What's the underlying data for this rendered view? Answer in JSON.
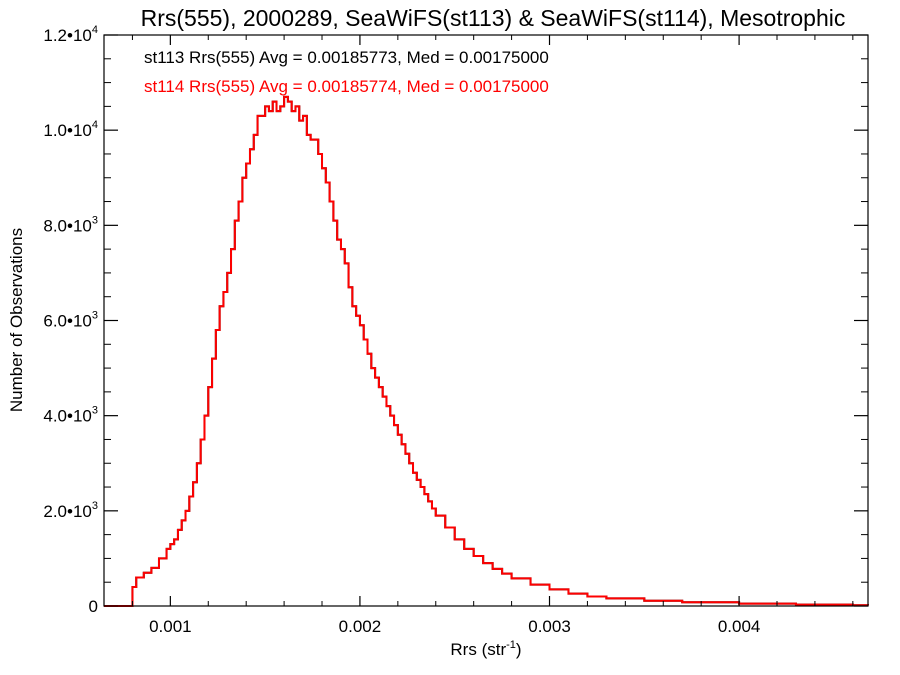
{
  "chart_data": {
    "type": "histogram",
    "title": "Rrs(555), 2000289, SeaWiFS(st113) & SeaWiFS(st114), Mesotrophic",
    "xlabel": "Rrs (str",
    "xlabel_sup": "-1",
    "xlabel_close": ")",
    "ylabel": "Number of Observations",
    "xlim": [
      0.00065,
      0.00468
    ],
    "ylim": [
      0,
      12000
    ],
    "grid": false,
    "x_ticks": [
      {
        "value": 0.001,
        "label": "0.001"
      },
      {
        "value": 0.002,
        "label": "0.002"
      },
      {
        "value": 0.003,
        "label": "0.003"
      },
      {
        "value": 0.004,
        "label": "0.004"
      }
    ],
    "y_ticks": [
      {
        "value": 0,
        "label": "0",
        "sup": ""
      },
      {
        "value": 2000,
        "label": "2.0•10",
        "sup": "3"
      },
      {
        "value": 4000,
        "label": "4.0•10",
        "sup": "3"
      },
      {
        "value": 6000,
        "label": "6.0•10",
        "sup": "3"
      },
      {
        "value": 8000,
        "label": "8.0•10",
        "sup": "3"
      },
      {
        "value": 10000,
        "label": "1.0•10",
        "sup": "4"
      },
      {
        "value": 12000,
        "label": "1.2•10",
        "sup": "4"
      }
    ],
    "annotations": [
      {
        "text": "st113 Rrs(555) Avg = 0.00185773, Med = 0.00175000",
        "color": "#000000"
      },
      {
        "text": "st114 Rrs(555) Avg = 0.00185774, Med = 0.00175000",
        "color": "#ff0000"
      }
    ],
    "series": [
      {
        "color": "#000000",
        "points": [
          [
            0.00065,
            0
          ],
          [
            0.0008,
            0
          ],
          [
            0.0008,
            400
          ],
          [
            0.00082,
            600
          ],
          [
            0.00086,
            700
          ],
          [
            0.0009,
            800
          ],
          [
            0.00094,
            1000
          ],
          [
            0.00098,
            1200
          ],
          [
            0.001,
            1300
          ],
          [
            0.00102,
            1400
          ],
          [
            0.00104,
            1600
          ],
          [
            0.00106,
            1800
          ],
          [
            0.00108,
            2000
          ],
          [
            0.0011,
            2300
          ],
          [
            0.00112,
            2600
          ],
          [
            0.00114,
            3000
          ],
          [
            0.00116,
            3500
          ],
          [
            0.00118,
            4000
          ],
          [
            0.0012,
            4600
          ],
          [
            0.00122,
            5200
          ],
          [
            0.00124,
            5800
          ],
          [
            0.00126,
            6300
          ],
          [
            0.00128,
            6600
          ],
          [
            0.0013,
            7000
          ],
          [
            0.00132,
            7500
          ],
          [
            0.00134,
            8100
          ],
          [
            0.00136,
            8500
          ],
          [
            0.00138,
            9000
          ],
          [
            0.0014,
            9300
          ],
          [
            0.00142,
            9600
          ],
          [
            0.00144,
            9900
          ],
          [
            0.00146,
            10300
          ],
          [
            0.00148,
            10300
          ],
          [
            0.0015,
            10500
          ],
          [
            0.00152,
            10400
          ],
          [
            0.00154,
            10600
          ],
          [
            0.00156,
            10400
          ],
          [
            0.00158,
            10500
          ],
          [
            0.0016,
            10700
          ],
          [
            0.00162,
            10600
          ],
          [
            0.00164,
            10400
          ],
          [
            0.00166,
            10500
          ],
          [
            0.00168,
            10200
          ],
          [
            0.0017,
            10300
          ],
          [
            0.00172,
            9900
          ],
          [
            0.00174,
            9800
          ],
          [
            0.00176,
            9800
          ],
          [
            0.00178,
            9500
          ],
          [
            0.0018,
            9200
          ],
          [
            0.00182,
            8900
          ],
          [
            0.00184,
            8500
          ],
          [
            0.00186,
            8100
          ],
          [
            0.00188,
            7700
          ],
          [
            0.0019,
            7500
          ],
          [
            0.00192,
            7200
          ],
          [
            0.00194,
            6700
          ],
          [
            0.00196,
            6300
          ],
          [
            0.00198,
            6100
          ],
          [
            0.002,
            5900
          ],
          [
            0.00202,
            5600
          ],
          [
            0.00204,
            5300
          ],
          [
            0.00206,
            5000
          ],
          [
            0.00208,
            4800
          ],
          [
            0.0021,
            4600
          ],
          [
            0.00212,
            4400
          ],
          [
            0.00214,
            4200
          ],
          [
            0.00216,
            4000
          ],
          [
            0.00218,
            3800
          ],
          [
            0.0022,
            3600
          ],
          [
            0.00222,
            3400
          ],
          [
            0.00224,
            3200
          ],
          [
            0.00226,
            3000
          ],
          [
            0.00228,
            2800
          ],
          [
            0.0023,
            2650
          ],
          [
            0.00232,
            2500
          ],
          [
            0.00234,
            2350
          ],
          [
            0.00236,
            2200
          ],
          [
            0.00238,
            2050
          ],
          [
            0.0024,
            1900
          ],
          [
            0.00245,
            1650
          ],
          [
            0.0025,
            1400
          ],
          [
            0.00255,
            1200
          ],
          [
            0.0026,
            1050
          ],
          [
            0.00265,
            900
          ],
          [
            0.0027,
            780
          ],
          [
            0.00275,
            680
          ],
          [
            0.0028,
            580
          ],
          [
            0.0029,
            450
          ],
          [
            0.003,
            350
          ],
          [
            0.0031,
            260
          ],
          [
            0.0032,
            200
          ],
          [
            0.0033,
            160
          ],
          [
            0.0035,
            110
          ],
          [
            0.0037,
            80
          ],
          [
            0.004,
            50
          ],
          [
            0.0043,
            30
          ],
          [
            0.0046,
            15
          ],
          [
            0.00468,
            10
          ]
        ]
      },
      {
        "color": "#ff0000",
        "points": [
          [
            0.00065,
            0
          ],
          [
            0.0008,
            0
          ],
          [
            0.0008,
            400
          ],
          [
            0.00082,
            600
          ],
          [
            0.00086,
            700
          ],
          [
            0.0009,
            800
          ],
          [
            0.00094,
            1000
          ],
          [
            0.00098,
            1200
          ],
          [
            0.001,
            1300
          ],
          [
            0.00102,
            1400
          ],
          [
            0.00104,
            1600
          ],
          [
            0.00106,
            1800
          ],
          [
            0.00108,
            2000
          ],
          [
            0.0011,
            2300
          ],
          [
            0.00112,
            2600
          ],
          [
            0.00114,
            3000
          ],
          [
            0.00116,
            3500
          ],
          [
            0.00118,
            4000
          ],
          [
            0.0012,
            4600
          ],
          [
            0.00122,
            5200
          ],
          [
            0.00124,
            5800
          ],
          [
            0.00126,
            6300
          ],
          [
            0.00128,
            6600
          ],
          [
            0.0013,
            7000
          ],
          [
            0.00132,
            7500
          ],
          [
            0.00134,
            8100
          ],
          [
            0.00136,
            8500
          ],
          [
            0.00138,
            9000
          ],
          [
            0.0014,
            9300
          ],
          [
            0.00142,
            9600
          ],
          [
            0.00144,
            9900
          ],
          [
            0.00146,
            10300
          ],
          [
            0.00148,
            10300
          ],
          [
            0.0015,
            10500
          ],
          [
            0.00152,
            10400
          ],
          [
            0.00154,
            10600
          ],
          [
            0.00156,
            10400
          ],
          [
            0.00158,
            10500
          ],
          [
            0.0016,
            10700
          ],
          [
            0.00162,
            10600
          ],
          [
            0.00164,
            10400
          ],
          [
            0.00166,
            10500
          ],
          [
            0.00168,
            10200
          ],
          [
            0.0017,
            10300
          ],
          [
            0.00172,
            9900
          ],
          [
            0.00174,
            9800
          ],
          [
            0.00176,
            9800
          ],
          [
            0.00178,
            9500
          ],
          [
            0.0018,
            9200
          ],
          [
            0.00182,
            8900
          ],
          [
            0.00184,
            8500
          ],
          [
            0.00186,
            8100
          ],
          [
            0.00188,
            7700
          ],
          [
            0.0019,
            7500
          ],
          [
            0.00192,
            7200
          ],
          [
            0.00194,
            6700
          ],
          [
            0.00196,
            6300
          ],
          [
            0.00198,
            6100
          ],
          [
            0.002,
            5900
          ],
          [
            0.00202,
            5600
          ],
          [
            0.00204,
            5300
          ],
          [
            0.00206,
            5000
          ],
          [
            0.00208,
            4800
          ],
          [
            0.0021,
            4600
          ],
          [
            0.00212,
            4400
          ],
          [
            0.00214,
            4200
          ],
          [
            0.00216,
            4000
          ],
          [
            0.00218,
            3800
          ],
          [
            0.0022,
            3600
          ],
          [
            0.00222,
            3400
          ],
          [
            0.00224,
            3200
          ],
          [
            0.00226,
            3000
          ],
          [
            0.00228,
            2800
          ],
          [
            0.0023,
            2650
          ],
          [
            0.00232,
            2500
          ],
          [
            0.00234,
            2350
          ],
          [
            0.00236,
            2200
          ],
          [
            0.00238,
            2050
          ],
          [
            0.0024,
            1900
          ],
          [
            0.00245,
            1650
          ],
          [
            0.0025,
            1400
          ],
          [
            0.00255,
            1200
          ],
          [
            0.0026,
            1050
          ],
          [
            0.00265,
            900
          ],
          [
            0.0027,
            780
          ],
          [
            0.00275,
            680
          ],
          [
            0.0028,
            580
          ],
          [
            0.0029,
            450
          ],
          [
            0.003,
            350
          ],
          [
            0.0031,
            260
          ],
          [
            0.0032,
            200
          ],
          [
            0.0033,
            160
          ],
          [
            0.0035,
            110
          ],
          [
            0.0037,
            80
          ],
          [
            0.004,
            50
          ],
          [
            0.0043,
            30
          ],
          [
            0.0046,
            15
          ],
          [
            0.00468,
            10
          ]
        ]
      }
    ]
  }
}
